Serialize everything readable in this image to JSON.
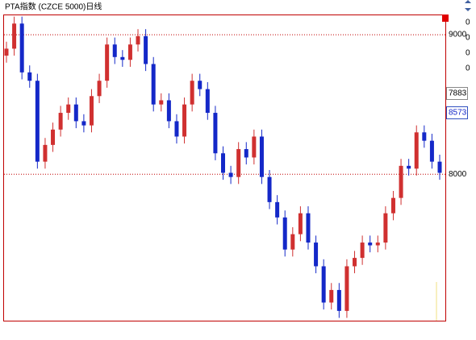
{
  "chart_data": {
    "type": "candlestick",
    "title": "PTA指数 (CZCE 5000)日线",
    "series": [
      {
        "open": [
          8850,
          8900,
          9080,
          8730,
          8670,
          8090,
          8210,
          8320,
          8440,
          8500,
          8380,
          8350,
          8560,
          8670,
          8930,
          8840,
          8820,
          8930,
          8990,
          8790,
          8500,
          8530,
          8380,
          8270,
          8500,
          8670,
          8610,
          8440,
          8150,
          8010,
          7980,
          8180,
          8120,
          8270,
          7980,
          7800,
          7690,
          7460,
          7570,
          7720,
          7510,
          7340,
          7080,
          7170,
          7020,
          7340,
          7400,
          7510,
          7490,
          7510,
          7720,
          7830,
          8060,
          8040,
          8300,
          8240,
          8090
        ],
        "high": [
          8950,
          9130,
          9130,
          8780,
          8720,
          8260,
          8370,
          8490,
          8550,
          8550,
          8430,
          8610,
          8720,
          8980,
          8980,
          8890,
          8980,
          9040,
          9040,
          8840,
          8580,
          8580,
          8430,
          8550,
          8720,
          8720,
          8660,
          8490,
          8200,
          8060,
          8230,
          8230,
          8320,
          8320,
          8030,
          7850,
          7740,
          7620,
          7770,
          7770,
          7560,
          7390,
          7220,
          7220,
          7390,
          7450,
          7560,
          7560,
          7560,
          7770,
          7880,
          8110,
          8110,
          8350,
          8350,
          8290,
          8140
        ],
        "low": [
          8800,
          8850,
          8680,
          8620,
          8040,
          8040,
          8160,
          8270,
          8390,
          8330,
          8300,
          8300,
          8510,
          8620,
          8790,
          8770,
          8770,
          8880,
          8740,
          8450,
          8450,
          8330,
          8220,
          8220,
          8450,
          8560,
          8390,
          8100,
          7960,
          7930,
          7930,
          8070,
          8070,
          7930,
          7750,
          7640,
          7410,
          7410,
          7520,
          7460,
          7290,
          7030,
          7030,
          6970,
          6970,
          7290,
          7350,
          7440,
          7440,
          7460,
          7670,
          7780,
          7990,
          7990,
          8190,
          8040,
          7960
        ],
        "close": [
          8900,
          9080,
          8730,
          8670,
          8090,
          8210,
          8320,
          8440,
          8500,
          8380,
          8350,
          8560,
          8670,
          8930,
          8840,
          8820,
          8930,
          8990,
          8790,
          8500,
          8530,
          8380,
          8270,
          8500,
          8670,
          8610,
          8440,
          8150,
          8010,
          7980,
          8180,
          8120,
          8270,
          7980,
          7800,
          7690,
          7460,
          7570,
          7720,
          7510,
          7340,
          7080,
          7170,
          7020,
          7340,
          7400,
          7510,
          7490,
          7510,
          7720,
          7830,
          8060,
          8040,
          8300,
          8240,
          8090,
          8010
        ]
      }
    ],
    "up_color": "#d03030",
    "down_color": "#1428c8",
    "ylim": [
      6950,
      9145
    ],
    "yticks": [
      9000,
      8000
    ],
    "grid": true,
    "grid_color": "#c00000",
    "price_tags": [
      "7883",
      "8573"
    ],
    "indicator_labels": [
      "0",
      "0",
      "0",
      "0"
    ]
  }
}
